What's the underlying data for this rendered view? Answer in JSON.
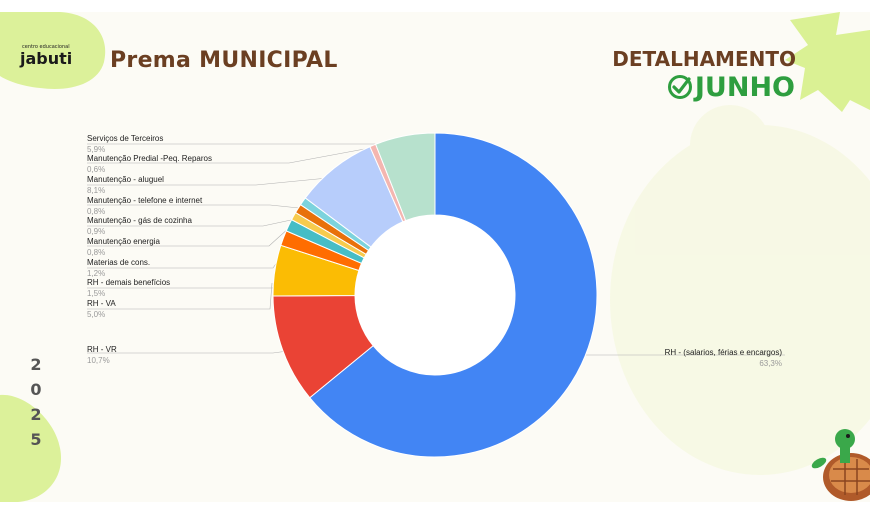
{
  "header": {
    "logo_small": "centro educacional",
    "logo_main": "jabuti",
    "title": "Prema MUNICIPAL",
    "detalhamento": "DETALHAMENTO",
    "month": "JUNHO"
  },
  "year_digits": [
    "2",
    "0",
    "2",
    "5"
  ],
  "icons": [
    "check-circle-icon",
    "turtle-mascot"
  ],
  "colors": {
    "title_brown": "#6b3f22",
    "month_green": "#2e9e3f",
    "blob_green": "#d6ef8a",
    "background": "#fcfbf5"
  },
  "chart_data": {
    "type": "pie",
    "donut": true,
    "title": "",
    "legend_placement": "callout labels",
    "slices": [
      {
        "label": "RH - (salarios, férias e encargos)",
        "pct_text": "63,3%",
        "value": 63.3,
        "color": "#4285f4"
      },
      {
        "label": "RH - VR",
        "pct_text": "10,7%",
        "value": 10.7,
        "color": "#ea4335"
      },
      {
        "label": "RH - VA",
        "pct_text": "5,0%",
        "value": 5.0,
        "color": "#fbbc04"
      },
      {
        "label": "RH - demais benefícios",
        "pct_text": "1,5%",
        "value": 1.5,
        "color": "#ff6d01"
      },
      {
        "label": "Materias de cons.",
        "pct_text": "1,2%",
        "value": 1.2,
        "color": "#46bdc6"
      },
      {
        "label": "Manutenção energia",
        "pct_text": "0,8%",
        "value": 0.8,
        "color": "#f7cb4d"
      },
      {
        "label": "Manutenção - gás de cozinha",
        "pct_text": "0,9%",
        "value": 0.9,
        "color": "#e8710a"
      },
      {
        "label": "Manutenção - telefone e internet",
        "pct_text": "0,8%",
        "value": 0.8,
        "color": "#7cd3dd"
      },
      {
        "label": "Manutenção - aluguel",
        "pct_text": "8,1%",
        "value": 8.1,
        "color": "#b7cdfb"
      },
      {
        "label": "Manutenção Predial -Peq. Reparos",
        "pct_text": "0,6%",
        "value": 0.6,
        "color": "#f4b6b0"
      },
      {
        "label": "Serviços de Terceiros",
        "pct_text": "5,9%",
        "value": 5.9,
        "color": "#b7e1cd"
      }
    ]
  }
}
